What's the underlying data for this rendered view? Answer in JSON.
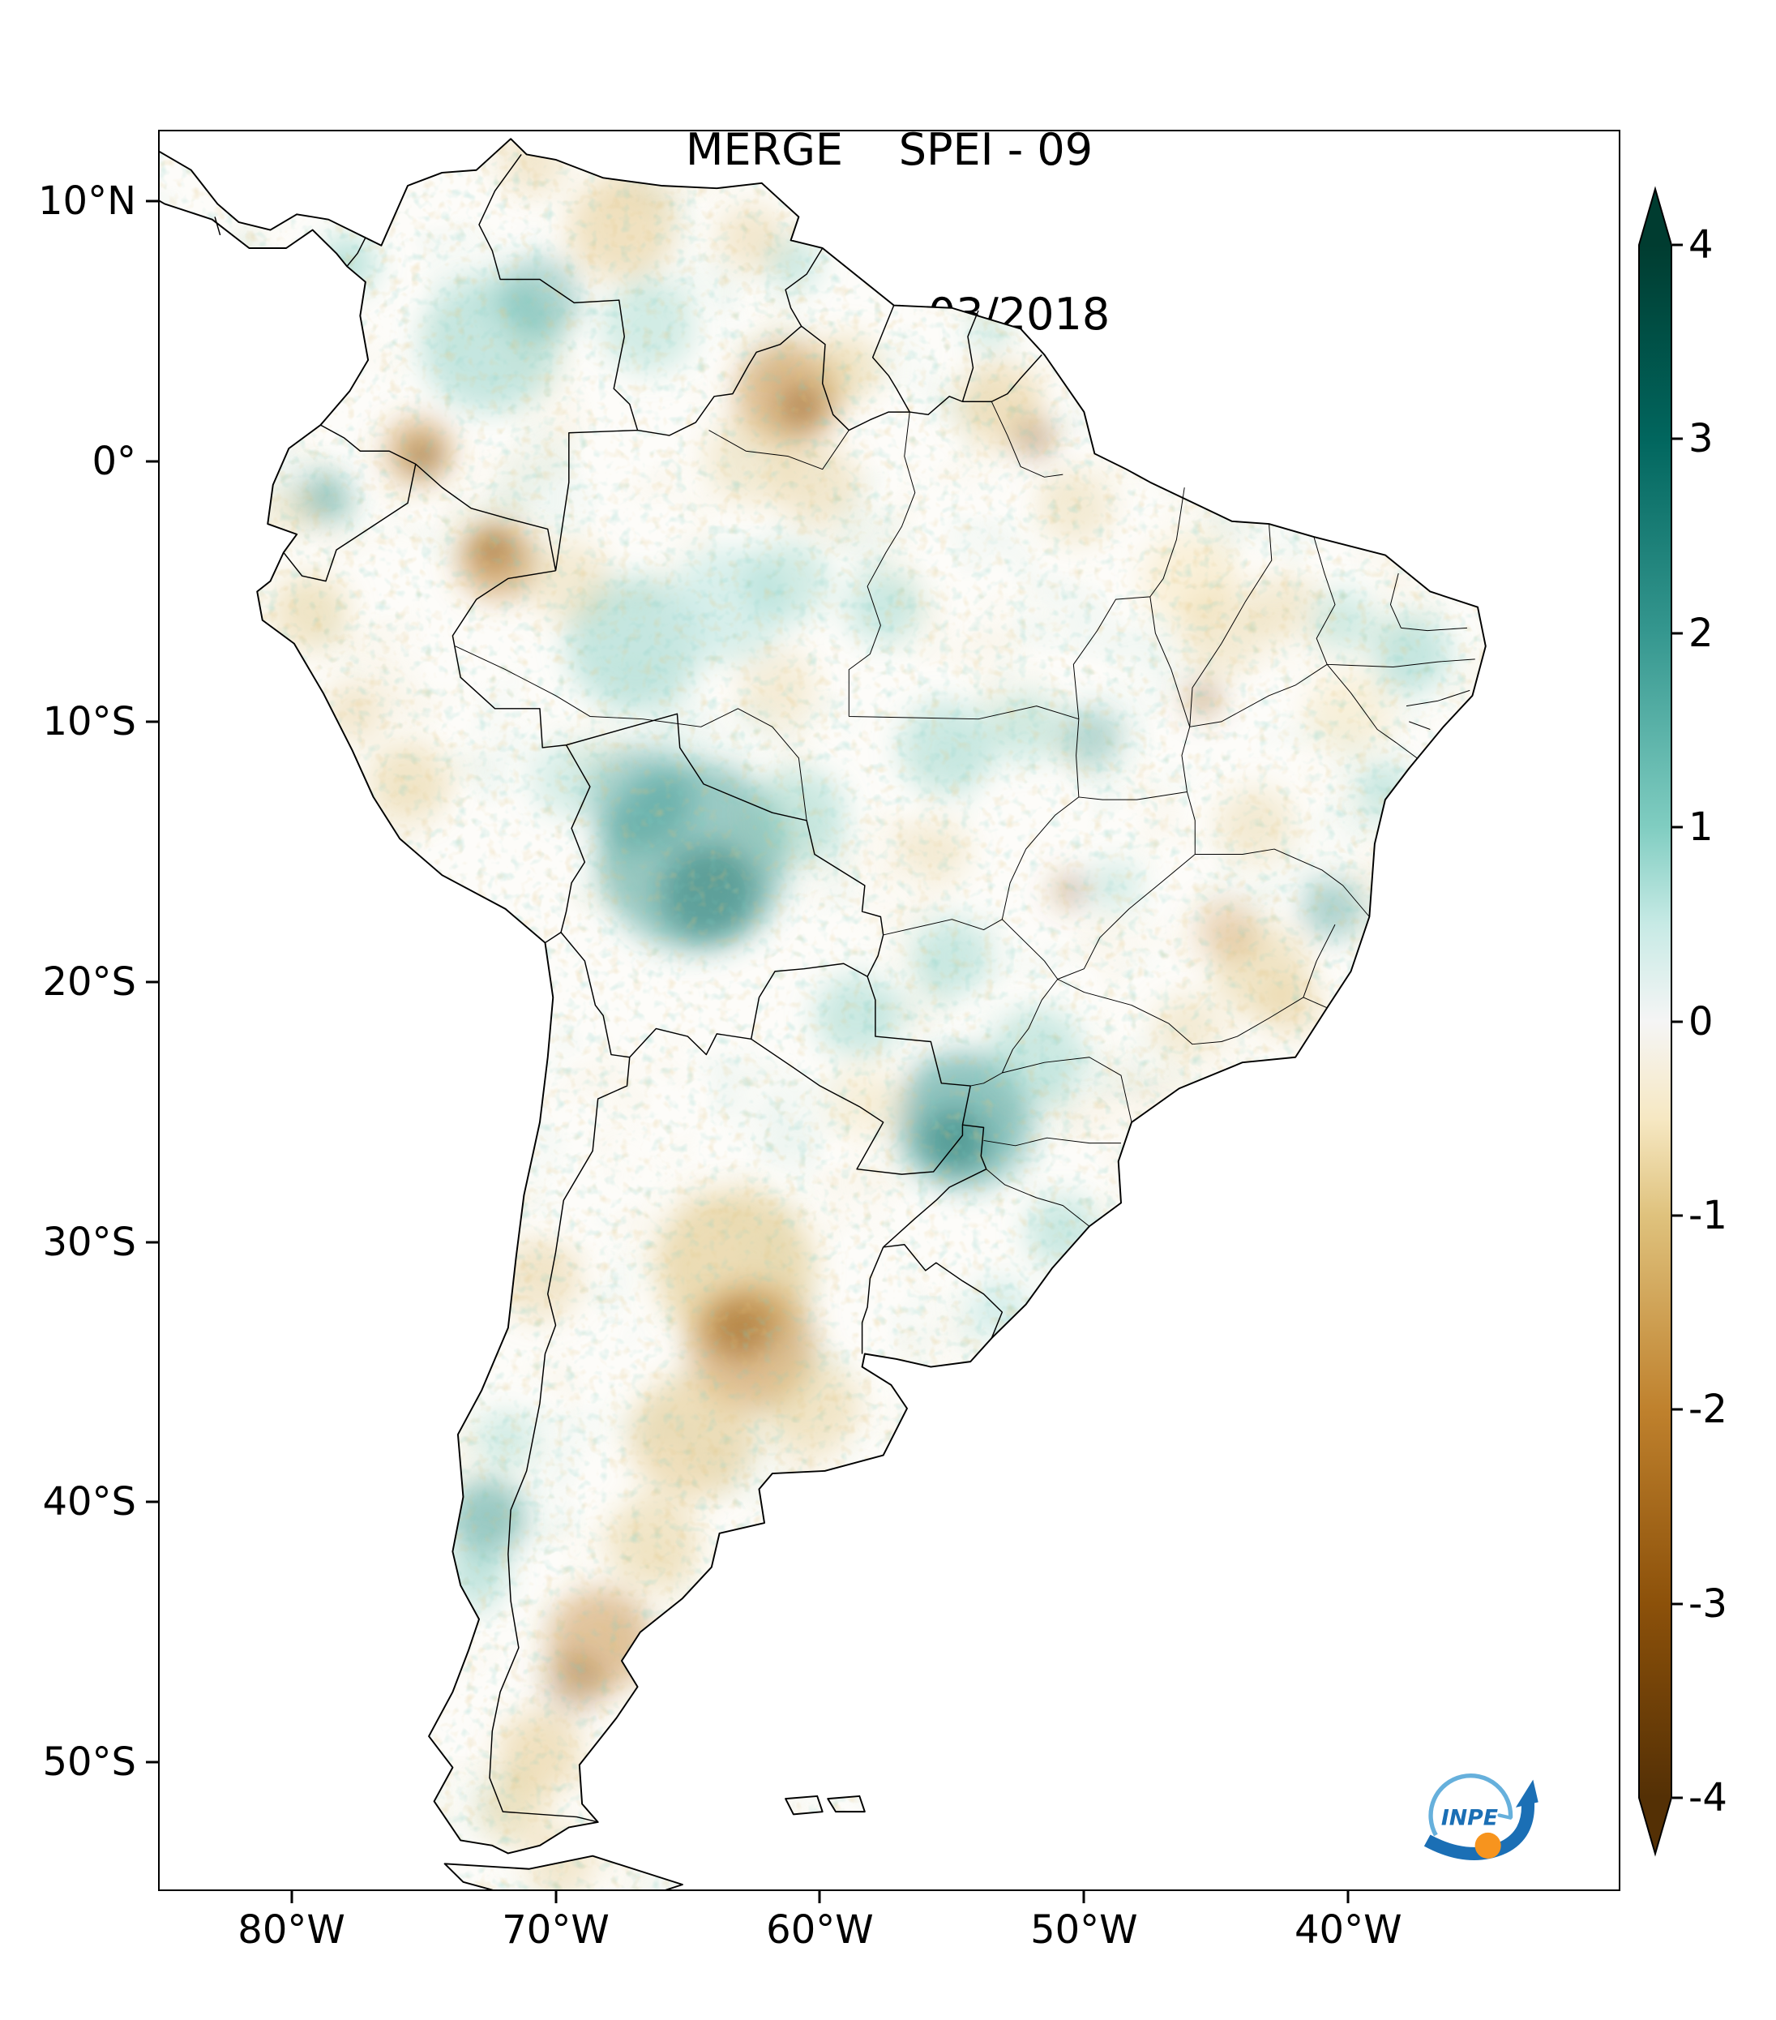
{
  "title": {
    "line1": "MERGE    SPEI - 09",
    "line2": "Válido para 03/2018"
  },
  "axes": {
    "y_ticks": [
      {
        "label": "10°N",
        "lat": 10
      },
      {
        "label": "0°",
        "lat": 0
      },
      {
        "label": "10°S",
        "lat": -10
      },
      {
        "label": "20°S",
        "lat": -20
      },
      {
        "label": "30°S",
        "lat": -30
      },
      {
        "label": "40°S",
        "lat": -40
      },
      {
        "label": "50°S",
        "lat": -50
      }
    ],
    "x_ticks": [
      {
        "label": "80°W",
        "lon": -80
      },
      {
        "label": "70°W",
        "lon": -70
      },
      {
        "label": "60°W",
        "lon": -60
      },
      {
        "label": "50°W",
        "lon": -50
      },
      {
        "label": "40°W",
        "lon": -40
      }
    ]
  },
  "colorbar": {
    "range": {
      "min": -4,
      "max": 4
    },
    "ticks": [
      {
        "label": "4",
        "value": 4
      },
      {
        "label": "3",
        "value": 3
      },
      {
        "label": "2",
        "value": 2
      },
      {
        "label": "1",
        "value": 1
      },
      {
        "label": "0",
        "value": 0
      },
      {
        "label": "-1",
        "value": -1
      },
      {
        "label": "-2",
        "value": -2
      },
      {
        "label": "-3",
        "value": -3
      },
      {
        "label": "-4",
        "value": -4
      }
    ],
    "stops": [
      {
        "value": 4,
        "color": "#003c30"
      },
      {
        "value": 3,
        "color": "#01665e"
      },
      {
        "value": 2,
        "color": "#35978f"
      },
      {
        "value": 1,
        "color": "#80cdc1"
      },
      {
        "value": 0.5,
        "color": "#c7eae5"
      },
      {
        "value": 0,
        "color": "#f5f5f5"
      },
      {
        "value": -0.5,
        "color": "#f6e8c3"
      },
      {
        "value": -1,
        "color": "#dfc27d"
      },
      {
        "value": -2,
        "color": "#bf812d"
      },
      {
        "value": -3,
        "color": "#8c510a"
      },
      {
        "value": -4,
        "color": "#543005"
      }
    ]
  },
  "logo": {
    "text": "INPE",
    "blue": "#1b6fb5",
    "light_blue": "#66b0dc",
    "orange": "#f7941e"
  },
  "map": {
    "colors": {
      "background": "#ffffff",
      "land_base": "#fdfcf9",
      "coastline": "#000000",
      "wet_light": "#c7eae5",
      "wet_mid": "#80cdc1",
      "wet_strong": "#35978f",
      "wet_dark": "#01665e",
      "dry_light": "#f6e8c3",
      "dry_mid": "#dfc27d",
      "dry_strong": "#bf812d",
      "dry_dark": "#8c510a",
      "dry_darkest": "#543005"
    },
    "anomaly_blobs": [
      {
        "lon": -72.5,
        "lat": 4.5,
        "r": 2.6,
        "color": "#80cdc1",
        "opacity": 0.45
      },
      {
        "lon": -70.6,
        "lat": 6.3,
        "r": 1.6,
        "color": "#35978f",
        "opacity": 0.35
      },
      {
        "lon": -77.9,
        "lat": 7.6,
        "r": 1.1,
        "color": "#80cdc1",
        "opacity": 0.5
      },
      {
        "lon": -78.7,
        "lat": -1.4,
        "r": 1.0,
        "color": "#35978f",
        "opacity": 0.45
      },
      {
        "lon": -66.5,
        "lat": 5.2,
        "r": 1.8,
        "color": "#80cdc1",
        "opacity": 0.35
      },
      {
        "lon": -61.0,
        "lat": 7.6,
        "r": 1.0,
        "color": "#80cdc1",
        "opacity": 0.4
      },
      {
        "lon": -67.0,
        "lat": -7.0,
        "r": 2.6,
        "color": "#80cdc1",
        "opacity": 0.45
      },
      {
        "lon": -63.5,
        "lat": -5.5,
        "r": 2.2,
        "color": "#c7eae5",
        "opacity": 0.7
      },
      {
        "lon": -61.2,
        "lat": -4.6,
        "r": 1.6,
        "color": "#80cdc1",
        "opacity": 0.35
      },
      {
        "lon": -57.6,
        "lat": -5.6,
        "r": 1.4,
        "color": "#80cdc1",
        "opacity": 0.4
      },
      {
        "lon": -64.8,
        "lat": -15.2,
        "r": 3.6,
        "color": "#35978f",
        "opacity": 0.5
      },
      {
        "lon": -64.2,
        "lat": -16.6,
        "r": 1.9,
        "color": "#01665e",
        "opacity": 0.4
      },
      {
        "lon": -66.8,
        "lat": -13.0,
        "r": 2.0,
        "color": "#35978f",
        "opacity": 0.4
      },
      {
        "lon": -69.4,
        "lat": -12.2,
        "r": 1.5,
        "color": "#80cdc1",
        "opacity": 0.3
      },
      {
        "lon": -60.8,
        "lat": -13.6,
        "r": 1.8,
        "color": "#80cdc1",
        "opacity": 0.4
      },
      {
        "lon": -55.2,
        "lat": -11.0,
        "r": 1.8,
        "color": "#80cdc1",
        "opacity": 0.4
      },
      {
        "lon": -52.2,
        "lat": -10.2,
        "r": 1.4,
        "color": "#80cdc1",
        "opacity": 0.35
      },
      {
        "lon": -49.7,
        "lat": -10.6,
        "r": 1.2,
        "color": "#35978f",
        "opacity": 0.35
      },
      {
        "lon": -55.0,
        "lat": -19.0,
        "r": 1.5,
        "color": "#80cdc1",
        "opacity": 0.4
      },
      {
        "lon": -58.6,
        "lat": -21.3,
        "r": 1.6,
        "color": "#80cdc1",
        "opacity": 0.4
      },
      {
        "lon": -54.6,
        "lat": -25.3,
        "r": 2.6,
        "color": "#35978f",
        "opacity": 0.55
      },
      {
        "lon": -54.9,
        "lat": -26.1,
        "r": 1.3,
        "color": "#01665e",
        "opacity": 0.4
      },
      {
        "lon": -51.8,
        "lat": -22.8,
        "r": 1.8,
        "color": "#80cdc1",
        "opacity": 0.4
      },
      {
        "lon": -50.8,
        "lat": -29.6,
        "r": 1.4,
        "color": "#80cdc1",
        "opacity": 0.4
      },
      {
        "lon": -53.2,
        "lat": -32.6,
        "r": 1.2,
        "color": "#c7eae5",
        "opacity": 0.7
      },
      {
        "lon": -72.6,
        "lat": -40.6,
        "r": 1.5,
        "color": "#35978f",
        "opacity": 0.5
      },
      {
        "lon": -73.0,
        "lat": -42.8,
        "r": 1.2,
        "color": "#80cdc1",
        "opacity": 0.45
      },
      {
        "lon": -71.9,
        "lat": -37.6,
        "r": 1.1,
        "color": "#80cdc1",
        "opacity": 0.35
      },
      {
        "lon": -37.6,
        "lat": -7.4,
        "r": 1.5,
        "color": "#80cdc1",
        "opacity": 0.45
      },
      {
        "lon": -40.2,
        "lat": -6.1,
        "r": 1.2,
        "color": "#80cdc1",
        "opacity": 0.35
      },
      {
        "lon": -38.6,
        "lat": -12.6,
        "r": 1.0,
        "color": "#80cdc1",
        "opacity": 0.4
      },
      {
        "lon": -40.6,
        "lat": -17.2,
        "r": 1.2,
        "color": "#35978f",
        "opacity": 0.4
      },
      {
        "lon": -48.8,
        "lat": -16.3,
        "r": 1.0,
        "color": "#80cdc1",
        "opacity": 0.3
      },
      {
        "lon": -53.6,
        "lat": 5.0,
        "r": 0.8,
        "color": "#80cdc1",
        "opacity": 0.35
      },
      {
        "lon": -67.5,
        "lat": 9.0,
        "r": 2.0,
        "color": "#dfc27d",
        "opacity": 0.45
      },
      {
        "lon": -70.8,
        "lat": 11.4,
        "r": 1.2,
        "color": "#dfc27d",
        "opacity": 0.35
      },
      {
        "lon": -61.2,
        "lat": 2.6,
        "r": 2.0,
        "color": "#bf812d",
        "opacity": 0.5
      },
      {
        "lon": -60.7,
        "lat": 2.1,
        "r": 0.9,
        "color": "#8c510a",
        "opacity": 0.45
      },
      {
        "lon": -59.0,
        "lat": 3.6,
        "r": 1.3,
        "color": "#dfc27d",
        "opacity": 0.4
      },
      {
        "lon": -62.6,
        "lat": 0.1,
        "r": 1.8,
        "color": "#dfc27d",
        "opacity": 0.3
      },
      {
        "lon": -75.2,
        "lat": 0.4,
        "r": 1.3,
        "color": "#bf812d",
        "opacity": 0.5
      },
      {
        "lon": -75.0,
        "lat": 0.2,
        "r": 0.55,
        "color": "#543005",
        "opacity": 0.5
      },
      {
        "lon": -72.2,
        "lat": -3.8,
        "r": 1.5,
        "color": "#bf812d",
        "opacity": 0.55
      },
      {
        "lon": -72.4,
        "lat": -3.4,
        "r": 0.7,
        "color": "#8c510a",
        "opacity": 0.5
      },
      {
        "lon": -69.5,
        "lat": -4.6,
        "r": 1.6,
        "color": "#dfc27d",
        "opacity": 0.3
      },
      {
        "lon": -60.1,
        "lat": -0.9,
        "r": 1.6,
        "color": "#dfc27d",
        "opacity": 0.35
      },
      {
        "lon": -53.2,
        "lat": 2.2,
        "r": 1.6,
        "color": "#dfc27d",
        "opacity": 0.45
      },
      {
        "lon": -51.9,
        "lat": 0.9,
        "r": 0.8,
        "color": "#8c510a",
        "opacity": 0.4
      },
      {
        "lon": -50.3,
        "lat": -1.8,
        "r": 1.4,
        "color": "#dfc27d",
        "opacity": 0.3
      },
      {
        "lon": -46.0,
        "lat": -4.5,
        "r": 1.8,
        "color": "#f6e8c3",
        "opacity": 0.6
      },
      {
        "lon": -44.8,
        "lat": -6.6,
        "r": 1.6,
        "color": "#dfc27d",
        "opacity": 0.3
      },
      {
        "lon": -45.5,
        "lat": -9.1,
        "r": 0.7,
        "color": "#8c510a",
        "opacity": 0.4
      },
      {
        "lon": -42.5,
        "lat": -5.6,
        "r": 1.3,
        "color": "#dfc27d",
        "opacity": 0.3
      },
      {
        "lon": -40.0,
        "lat": -9.6,
        "r": 1.6,
        "color": "#f6e8c3",
        "opacity": 0.55
      },
      {
        "lon": -43.5,
        "lat": -14.0,
        "r": 1.5,
        "color": "#dfc27d",
        "opacity": 0.3
      },
      {
        "lon": -43.3,
        "lat": -19.6,
        "r": 1.8,
        "color": "#dfc27d",
        "opacity": 0.4
      },
      {
        "lon": -44.6,
        "lat": -18.0,
        "r": 1.2,
        "color": "#bf812d",
        "opacity": 0.3
      },
      {
        "lon": -42.1,
        "lat": -21.0,
        "r": 1.2,
        "color": "#dfc27d",
        "opacity": 0.35
      },
      {
        "lon": -46.1,
        "lat": -21.8,
        "r": 1.3,
        "color": "#dfc27d",
        "opacity": 0.3
      },
      {
        "lon": -50.5,
        "lat": -16.5,
        "r": 0.7,
        "color": "#8c510a",
        "opacity": 0.35
      },
      {
        "lon": -55.6,
        "lat": -15.0,
        "r": 1.3,
        "color": "#dfc27d",
        "opacity": 0.25
      },
      {
        "lon": -75.6,
        "lat": -12.3,
        "r": 1.5,
        "color": "#dfc27d",
        "opacity": 0.4
      },
      {
        "lon": -79.3,
        "lat": -5.8,
        "r": 1.5,
        "color": "#dfc27d",
        "opacity": 0.4
      },
      {
        "lon": -77.6,
        "lat": -9.6,
        "r": 1.2,
        "color": "#dfc27d",
        "opacity": 0.35
      },
      {
        "lon": -70.6,
        "lat": -31.5,
        "r": 1.6,
        "color": "#dfc27d",
        "opacity": 0.35
      },
      {
        "lon": -63.2,
        "lat": -31.0,
        "r": 3.0,
        "color": "#dfc27d",
        "opacity": 0.55
      },
      {
        "lon": -62.6,
        "lat": -34.0,
        "r": 2.4,
        "color": "#bf812d",
        "opacity": 0.5
      },
      {
        "lon": -63.0,
        "lat": -33.4,
        "r": 1.2,
        "color": "#8c510a",
        "opacity": 0.4
      },
      {
        "lon": -64.8,
        "lat": -37.5,
        "r": 2.4,
        "color": "#dfc27d",
        "opacity": 0.5
      },
      {
        "lon": -60.3,
        "lat": -36.3,
        "r": 1.8,
        "color": "#dfc27d",
        "opacity": 0.4
      },
      {
        "lon": -66.3,
        "lat": -41.6,
        "r": 1.8,
        "color": "#dfc27d",
        "opacity": 0.4
      },
      {
        "lon": -68.3,
        "lat": -45.3,
        "r": 2.0,
        "color": "#bf812d",
        "opacity": 0.45
      },
      {
        "lon": -69.3,
        "lat": -47.0,
        "r": 1.2,
        "color": "#8c510a",
        "opacity": 0.3
      },
      {
        "lon": -70.6,
        "lat": -49.6,
        "r": 1.6,
        "color": "#dfc27d",
        "opacity": 0.45
      },
      {
        "lon": -71.6,
        "lat": -51.8,
        "r": 1.3,
        "color": "#dfc27d",
        "opacity": 0.4
      },
      {
        "lon": -69.8,
        "lat": -53.8,
        "r": 1.4,
        "color": "#dfc27d",
        "opacity": 0.35
      },
      {
        "lon": -62.6,
        "lat": 8.6,
        "r": 1.3,
        "color": "#dfc27d",
        "opacity": 0.35
      },
      {
        "lon": -80.2,
        "lat": -2.0,
        "r": 0.9,
        "color": "#dfc27d",
        "opacity": 0.3
      },
      {
        "lon": -58.3,
        "lat": -24.6,
        "r": 1.4,
        "color": "#f6e8c3",
        "opacity": 0.5
      },
      {
        "lon": -61.6,
        "lat": -8.6,
        "r": 1.5,
        "color": "#dfc27d",
        "opacity": 0.25
      }
    ]
  }
}
